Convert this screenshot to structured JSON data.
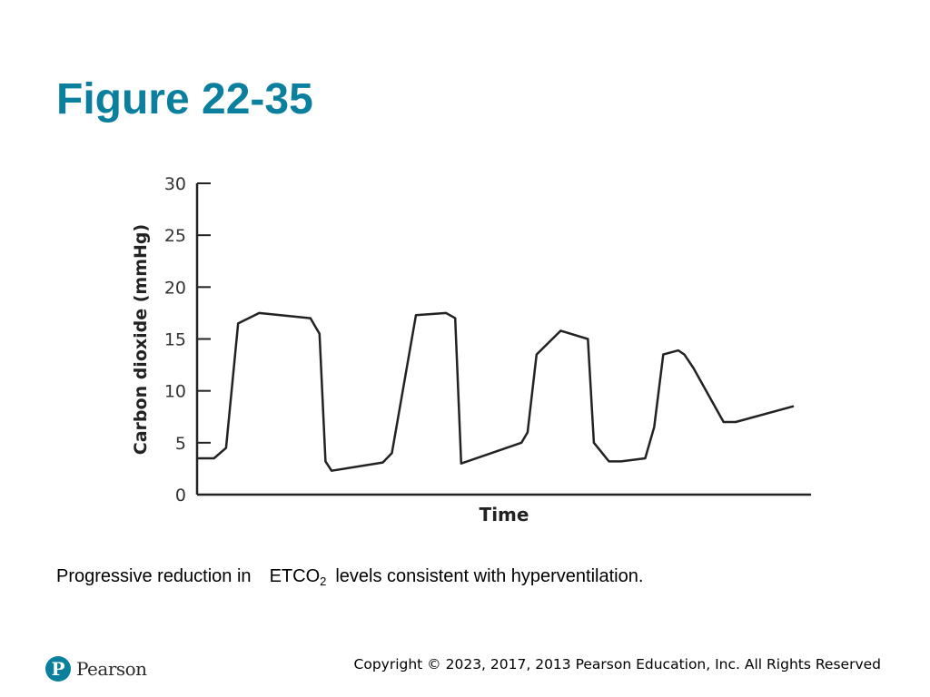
{
  "slide": {
    "title": "Figure 22-35",
    "caption_before": "Progressive reduction in",
    "caption_term": "ETCO",
    "caption_term_subscript": "2",
    "caption_after": "levels consistent with hyperventilation."
  },
  "footer": {
    "logo_mark": "P",
    "logo_text": "Pearson",
    "copyright": "Copyright © 2023, 2017, 2013 Pearson Education, Inc. All Rights Reserved",
    "brand_color": "#0a7f9e"
  },
  "chart_data": {
    "type": "line",
    "title": "",
    "xlabel": "Time",
    "ylabel": "Carbon dioxide (mmHg)",
    "xlim": [
      0,
      100
    ],
    "ylim": [
      0,
      30
    ],
    "yticks": [
      0,
      5,
      10,
      15,
      20,
      25,
      30
    ],
    "ytick_labels": [
      "0",
      "5",
      "10",
      "15",
      "20",
      "25",
      "30"
    ],
    "grid": false,
    "line_color": "#222222",
    "series": [
      {
        "name": "",
        "x": [
          0,
          2.5,
          4.5,
          6.5,
          10,
          15,
          18.5,
          20,
          21,
          22,
          30.5,
          32,
          36,
          41,
          42.5,
          43.5,
          53.5,
          54.5,
          56,
          60,
          64.5,
          65.5,
          68,
          70,
          74,
          75.5,
          77,
          79.5,
          80.5,
          82,
          87,
          89,
          98.5
        ],
        "y": [
          3.5,
          3.5,
          4.5,
          16.5,
          17.5,
          17.2,
          17.0,
          15.5,
          3.2,
          2.3,
          3.1,
          4.0,
          17.3,
          17.5,
          17.0,
          3.0,
          5.0,
          6.0,
          13.5,
          15.8,
          15.0,
          5.0,
          3.2,
          3.2,
          3.5,
          6.5,
          13.5,
          13.9,
          13.5,
          12.2,
          7.0,
          7.0,
          8.5
        ]
      }
    ]
  }
}
